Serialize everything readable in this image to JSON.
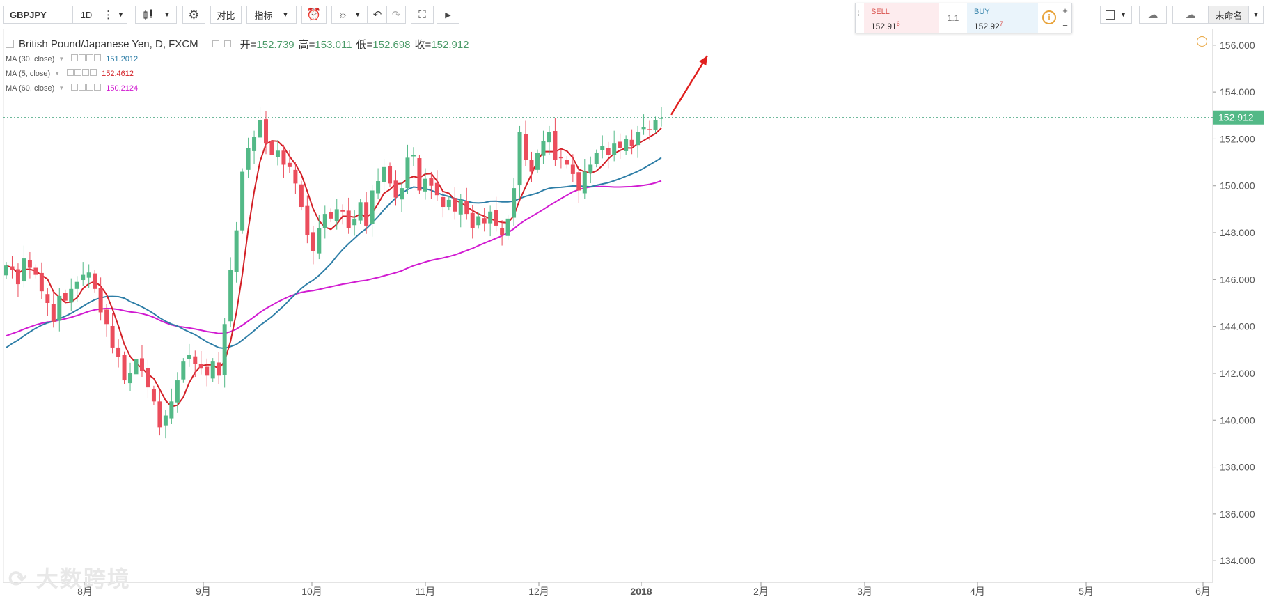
{
  "toolbar": {
    "symbol": "GBPJPY",
    "interval": "1D",
    "compare_label": "对比",
    "indicators_label": "指标",
    "save_label": "未命名"
  },
  "quote": {
    "sell_label": "SELL",
    "sell_price": "152.91",
    "sell_sup": "6",
    "spread": "1.1",
    "buy_label": "BUY",
    "buy_price": "152.92",
    "buy_sup": "7",
    "plus": "+",
    "minus": "−"
  },
  "legend": {
    "title": "British Pound/Japanese Yen, D, FXCM",
    "open_label": "开=",
    "open": "152.739",
    "high_label": "高=",
    "high": "153.011",
    "low_label": "低=",
    "low": "152.698",
    "close_label": "收=",
    "close": "152.912",
    "ma": [
      {
        "label": "MA (30, close)",
        "value": "151.2012",
        "color": "#2e7ea7"
      },
      {
        "label": "MA (5, close)",
        "value": "152.4612",
        "color": "#d31f26"
      },
      {
        "label": "MA (60, close)",
        "value": "150.2124",
        "color": "#d11bd1"
      }
    ]
  },
  "watermark": "大数跨境",
  "chart_data": {
    "type": "candlestick",
    "title": "British Pound/Japanese Yen, D, FXCM",
    "y_ticks": [
      "156.000",
      "154.000",
      "152.000",
      "150.000",
      "148.000",
      "146.000",
      "144.000",
      "142.000",
      "140.000",
      "138.000",
      "136.000",
      "134.000"
    ],
    "ylim": [
      133.5,
      156.5
    ],
    "x_ticks": [
      "8月",
      "9月",
      "10月",
      "11月",
      "12月",
      "2018",
      "2月",
      "3月",
      "4月",
      "5月",
      "6月"
    ],
    "last_price": "152.912",
    "up_color": "#53b987",
    "down_color": "#eb4d5c",
    "closes": [
      146.6,
      146.4,
      145.8,
      146.9,
      146.5,
      146.2,
      145.5,
      145.0,
      144.2,
      145.3,
      145.1,
      145.6,
      145.9,
      146.2,
      146.3,
      145.6,
      144.6,
      144.1,
      143.1,
      142.7,
      141.7,
      142.0,
      142.6,
      142.1,
      141.4,
      140.8,
      139.7,
      140.2,
      140.8,
      141.7,
      142.5,
      142.8,
      142.4,
      142.2,
      141.9,
      142.5,
      141.9,
      144.1,
      146.4,
      148.1,
      150.6,
      151.6,
      152.1,
      152.8,
      151.8,
      151.3,
      151.5,
      150.9,
      150.8,
      150.1,
      149.1,
      147.9,
      147.2,
      148.2,
      148.8,
      148.6,
      149.0,
      148.9,
      148.2,
      148.6,
      149.3,
      148.3,
      149.8,
      150.2,
      150.8,
      150.1,
      149.5,
      149.9,
      151.2,
      151.3,
      149.8,
      150.3,
      150.0,
      149.6,
      149.1,
      149.4,
      148.9,
      149.4,
      148.8,
      148.2,
      148.7,
      148.4,
      148.9,
      148.3,
      147.9,
      148.6,
      149.9,
      152.3,
      151.1,
      150.6,
      151.4,
      151.9,
      152.3,
      151.1,
      151.2,
      150.9,
      150.5,
      149.8,
      150.6,
      150.9,
      151.4,
      151.7,
      151.3,
      151.8,
      151.6,
      152.0,
      151.7,
      152.3,
      152.5,
      152.4,
      152.8,
      152.9
    ],
    "ma_series": [
      {
        "name": "MA (30, close)",
        "start": 143.1,
        "end": 151.2012
      },
      {
        "name": "MA (5, close)",
        "end": 152.4612
      },
      {
        "name": "MA (60, close)",
        "start": 143.6,
        "end": 150.2124
      }
    ]
  }
}
